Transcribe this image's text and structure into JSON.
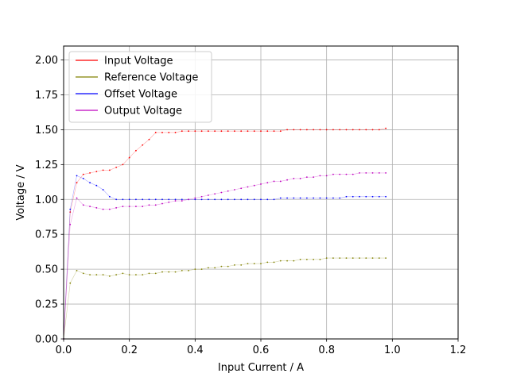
{
  "chart_data": {
    "type": "line",
    "xlabel": "Input Current / A",
    "ylabel": "Voltage / V",
    "xlim": [
      0,
      1.2
    ],
    "ylim": [
      0,
      2.1
    ],
    "xticks": [
      0,
      0.2,
      0.4,
      0.6,
      0.8,
      1.0,
      1.2
    ],
    "yticks": [
      0,
      0.25,
      0.5,
      0.75,
      1.0,
      1.25,
      1.5,
      1.75,
      2.0
    ],
    "xtick_labels": [
      "0.0",
      "0.2",
      "0.4",
      "0.6",
      "0.8",
      "1.0",
      "1.2"
    ],
    "ytick_labels": [
      "0.00",
      "0.25",
      "0.50",
      "0.75",
      "1.00",
      "1.25",
      "1.50",
      "1.75",
      "2.00"
    ],
    "grid": true,
    "legend_position": "top-left",
    "series": [
      {
        "name": "Input Voltage",
        "color": "#ff0000",
        "x": [
          0,
          0.02,
          0.04,
          0.06,
          0.08,
          0.1,
          0.12,
          0.14,
          0.16,
          0.18,
          0.2,
          0.22,
          0.24,
          0.26,
          0.28,
          0.3,
          0.32,
          0.34,
          0.36,
          0.38,
          0.4,
          0.42,
          0.44,
          0.46,
          0.48,
          0.5,
          0.52,
          0.54,
          0.56,
          0.58,
          0.6,
          0.62,
          0.64,
          0.66,
          0.68,
          0.7,
          0.72,
          0.74,
          0.76,
          0.78,
          0.8,
          0.82,
          0.84,
          0.86,
          0.88,
          0.9,
          0.92,
          0.94,
          0.96,
          0.98
        ],
        "y": [
          0.0,
          0.91,
          1.12,
          1.18,
          1.19,
          1.2,
          1.21,
          1.21,
          1.23,
          1.25,
          1.3,
          1.35,
          1.39,
          1.43,
          1.48,
          1.48,
          1.48,
          1.48,
          1.49,
          1.49,
          1.49,
          1.49,
          1.49,
          1.49,
          1.49,
          1.49,
          1.49,
          1.49,
          1.49,
          1.49,
          1.49,
          1.49,
          1.49,
          1.49,
          1.5,
          1.5,
          1.5,
          1.5,
          1.5,
          1.5,
          1.5,
          1.5,
          1.5,
          1.5,
          1.5,
          1.5,
          1.5,
          1.5,
          1.5,
          1.51
        ]
      },
      {
        "name": "Reference Voltage",
        "color": "#808000",
        "x": [
          0,
          0.02,
          0.04,
          0.06,
          0.08,
          0.1,
          0.12,
          0.14,
          0.16,
          0.18,
          0.2,
          0.22,
          0.24,
          0.26,
          0.28,
          0.3,
          0.32,
          0.34,
          0.36,
          0.38,
          0.4,
          0.42,
          0.44,
          0.46,
          0.48,
          0.5,
          0.52,
          0.54,
          0.56,
          0.58,
          0.6,
          0.62,
          0.64,
          0.66,
          0.68,
          0.7,
          0.72,
          0.74,
          0.76,
          0.78,
          0.8,
          0.82,
          0.84,
          0.86,
          0.88,
          0.9,
          0.92,
          0.94,
          0.96,
          0.98
        ],
        "y": [
          0.0,
          0.4,
          0.49,
          0.47,
          0.46,
          0.46,
          0.46,
          0.45,
          0.46,
          0.47,
          0.46,
          0.46,
          0.46,
          0.47,
          0.47,
          0.48,
          0.48,
          0.48,
          0.49,
          0.49,
          0.5,
          0.5,
          0.51,
          0.51,
          0.52,
          0.52,
          0.53,
          0.53,
          0.54,
          0.54,
          0.54,
          0.55,
          0.55,
          0.56,
          0.56,
          0.56,
          0.57,
          0.57,
          0.57,
          0.57,
          0.58,
          0.58,
          0.58,
          0.58,
          0.58,
          0.58,
          0.58,
          0.58,
          0.58,
          0.58
        ]
      },
      {
        "name": "Offset Voltage",
        "color": "#0000ff",
        "x": [
          0,
          0.02,
          0.04,
          0.06,
          0.08,
          0.1,
          0.12,
          0.14,
          0.16,
          0.18,
          0.2,
          0.22,
          0.24,
          0.26,
          0.28,
          0.3,
          0.32,
          0.34,
          0.36,
          0.38,
          0.4,
          0.42,
          0.44,
          0.46,
          0.48,
          0.5,
          0.52,
          0.54,
          0.56,
          0.58,
          0.6,
          0.62,
          0.64,
          0.66,
          0.68,
          0.7,
          0.72,
          0.74,
          0.76,
          0.78,
          0.8,
          0.82,
          0.84,
          0.86,
          0.88,
          0.9,
          0.92,
          0.94,
          0.96,
          0.98
        ],
        "y": [
          0.0,
          0.93,
          1.17,
          1.15,
          1.12,
          1.1,
          1.07,
          1.02,
          1.0,
          1.0,
          1.0,
          1.0,
          1.0,
          1.0,
          1.0,
          1.0,
          1.0,
          1.0,
          1.0,
          1.0,
          1.0,
          1.0,
          1.0,
          1.0,
          1.0,
          1.0,
          1.0,
          1.0,
          1.0,
          1.0,
          1.0,
          1.0,
          1.0,
          1.01,
          1.01,
          1.01,
          1.01,
          1.01,
          1.01,
          1.01,
          1.01,
          1.01,
          1.01,
          1.02,
          1.02,
          1.02,
          1.02,
          1.02,
          1.02,
          1.02
        ]
      },
      {
        "name": "Output Voltage",
        "color": "#bf00bf",
        "x": [
          0,
          0.02,
          0.04,
          0.06,
          0.08,
          0.1,
          0.12,
          0.14,
          0.16,
          0.18,
          0.2,
          0.22,
          0.24,
          0.26,
          0.28,
          0.3,
          0.32,
          0.34,
          0.36,
          0.38,
          0.4,
          0.42,
          0.44,
          0.46,
          0.48,
          0.5,
          0.52,
          0.54,
          0.56,
          0.58,
          0.6,
          0.62,
          0.64,
          0.66,
          0.68,
          0.7,
          0.72,
          0.74,
          0.76,
          0.78,
          0.8,
          0.82,
          0.84,
          0.86,
          0.88,
          0.9,
          0.92,
          0.94,
          0.96,
          0.98
        ],
        "y": [
          0.0,
          0.82,
          1.01,
          0.96,
          0.95,
          0.94,
          0.93,
          0.93,
          0.94,
          0.95,
          0.95,
          0.95,
          0.95,
          0.96,
          0.96,
          0.97,
          0.98,
          0.99,
          0.99,
          1.0,
          1.01,
          1.02,
          1.03,
          1.04,
          1.05,
          1.06,
          1.07,
          1.08,
          1.09,
          1.1,
          1.11,
          1.12,
          1.13,
          1.13,
          1.14,
          1.15,
          1.15,
          1.16,
          1.16,
          1.17,
          1.17,
          1.18,
          1.18,
          1.18,
          1.18,
          1.19,
          1.19,
          1.19,
          1.19,
          1.19
        ]
      }
    ]
  }
}
